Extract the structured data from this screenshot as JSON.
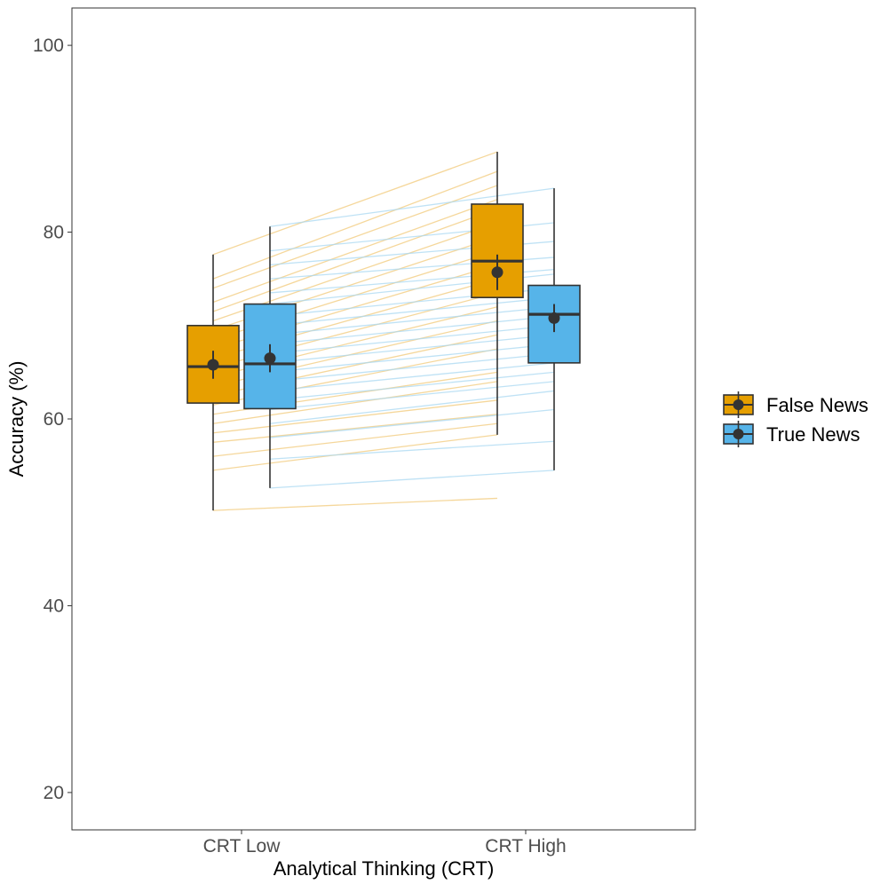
{
  "chart_data": {
    "type": "box",
    "title": "",
    "xlabel": "Analytical Thinking (CRT)",
    "ylabel": "Accuracy (%)",
    "ylim": [
      16,
      104
    ],
    "yticks": [
      20,
      40,
      60,
      80,
      100
    ],
    "grid": false,
    "legend_position": "right",
    "categories": [
      "CRT Low",
      "CRT High"
    ],
    "series": [
      {
        "name": "False News",
        "color": "#E69F00",
        "line_color": "#F2C97A",
        "boxes": [
          {
            "whisker_low": 50.2,
            "q1": 61.7,
            "median": 65.6,
            "q3": 70.0,
            "whisker_high": 77.6,
            "mean": 65.8,
            "mean_ci": [
              64.3,
              67.3
            ]
          },
          {
            "whisker_low": 58.3,
            "q1": 73.0,
            "median": 76.9,
            "q3": 83.0,
            "whisker_high": 88.6,
            "mean": 75.7,
            "mean_ci": [
              73.8,
              77.6
            ]
          }
        ],
        "individuals": [
          [
            50.2,
            51.5
          ],
          [
            54.5,
            58.3
          ],
          [
            56.0,
            59.5
          ],
          [
            57.5,
            60.5
          ],
          [
            58.5,
            62.0
          ],
          [
            59.5,
            64.0
          ],
          [
            60.5,
            65.0
          ],
          [
            61.5,
            67.5
          ],
          [
            62.5,
            69.0
          ],
          [
            63.5,
            70.5
          ],
          [
            64.5,
            72.0
          ],
          [
            65.5,
            73.5
          ],
          [
            66.5,
            75.0
          ],
          [
            67.5,
            76.5
          ],
          [
            68.5,
            78.0
          ],
          [
            69.5,
            79.5
          ],
          [
            70.5,
            81.0
          ],
          [
            71.5,
            82.5
          ],
          [
            72.5,
            83.5
          ],
          [
            74.0,
            85.0
          ],
          [
            75.0,
            86.5
          ],
          [
            77.6,
            88.6
          ]
        ]
      },
      {
        "name": "True News",
        "color": "#56B4E9",
        "line_color": "#A9D8F2",
        "boxes": [
          {
            "whisker_low": 52.6,
            "q1": 61.1,
            "median": 65.9,
            "q3": 72.3,
            "whisker_high": 80.6,
            "mean": 66.5,
            "mean_ci": [
              65.0,
              68.0
            ]
          },
          {
            "whisker_low": 54.5,
            "q1": 66.0,
            "median": 71.2,
            "q3": 74.3,
            "whisker_high": 84.7,
            "mean": 70.8,
            "mean_ci": [
              69.3,
              72.3
            ]
          }
        ],
        "individuals": [
          [
            52.6,
            54.5
          ],
          [
            55.7,
            57.6
          ],
          [
            58.0,
            61.0
          ],
          [
            59.5,
            63.0
          ],
          [
            61.0,
            64.0
          ],
          [
            62.0,
            65.0
          ],
          [
            63.0,
            66.0
          ],
          [
            64.0,
            67.0
          ],
          [
            65.0,
            68.0
          ],
          [
            66.0,
            69.0
          ],
          [
            67.0,
            70.0
          ],
          [
            68.0,
            71.0
          ],
          [
            69.0,
            72.0
          ],
          [
            70.0,
            73.0
          ],
          [
            71.0,
            74.0
          ],
          [
            72.3,
            75.5
          ],
          [
            73.5,
            76.0
          ],
          [
            75.0,
            77.3
          ],
          [
            76.5,
            79.0
          ],
          [
            78.0,
            81.0
          ],
          [
            80.6,
            84.7
          ]
        ]
      }
    ]
  }
}
